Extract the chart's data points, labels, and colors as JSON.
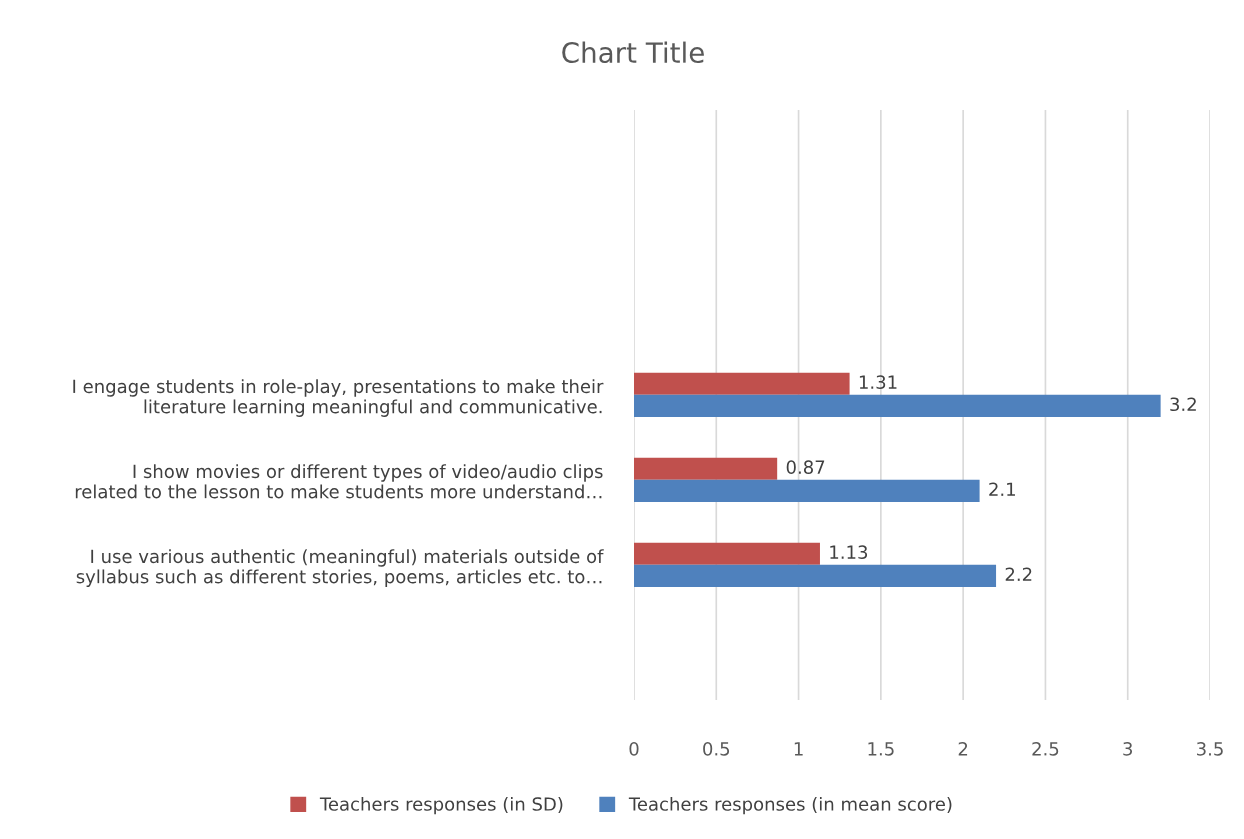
{
  "chart_data": {
    "type": "bar",
    "orientation": "horizontal",
    "title": "Chart Title",
    "categories": [
      "I engage students in role-play, presentations to make their\nliterature learning meaningful and communicative.",
      "I show movies or different types of video/audio clips\nrelated to the lesson to make students more understand…",
      "I use various authentic (meaningful) materials outside of\nsyllabus such as different stories, poems, articles etc. to…"
    ],
    "series": [
      {
        "name": "Teachers responses (in SD)",
        "color": "#c0504d",
        "values": [
          1.31,
          0.87,
          1.13
        ]
      },
      {
        "name": "Teachers responses (in mean score)",
        "color": "#4f81bd",
        "values": [
          3.2,
          2.1,
          2.2
        ]
      }
    ],
    "xlim": [
      0,
      3.5
    ],
    "xticks": [
      0,
      0.5,
      1,
      1.5,
      2,
      2.5,
      3,
      3.5
    ],
    "grid": "x",
    "legend": "bottom",
    "data_labels": true
  }
}
